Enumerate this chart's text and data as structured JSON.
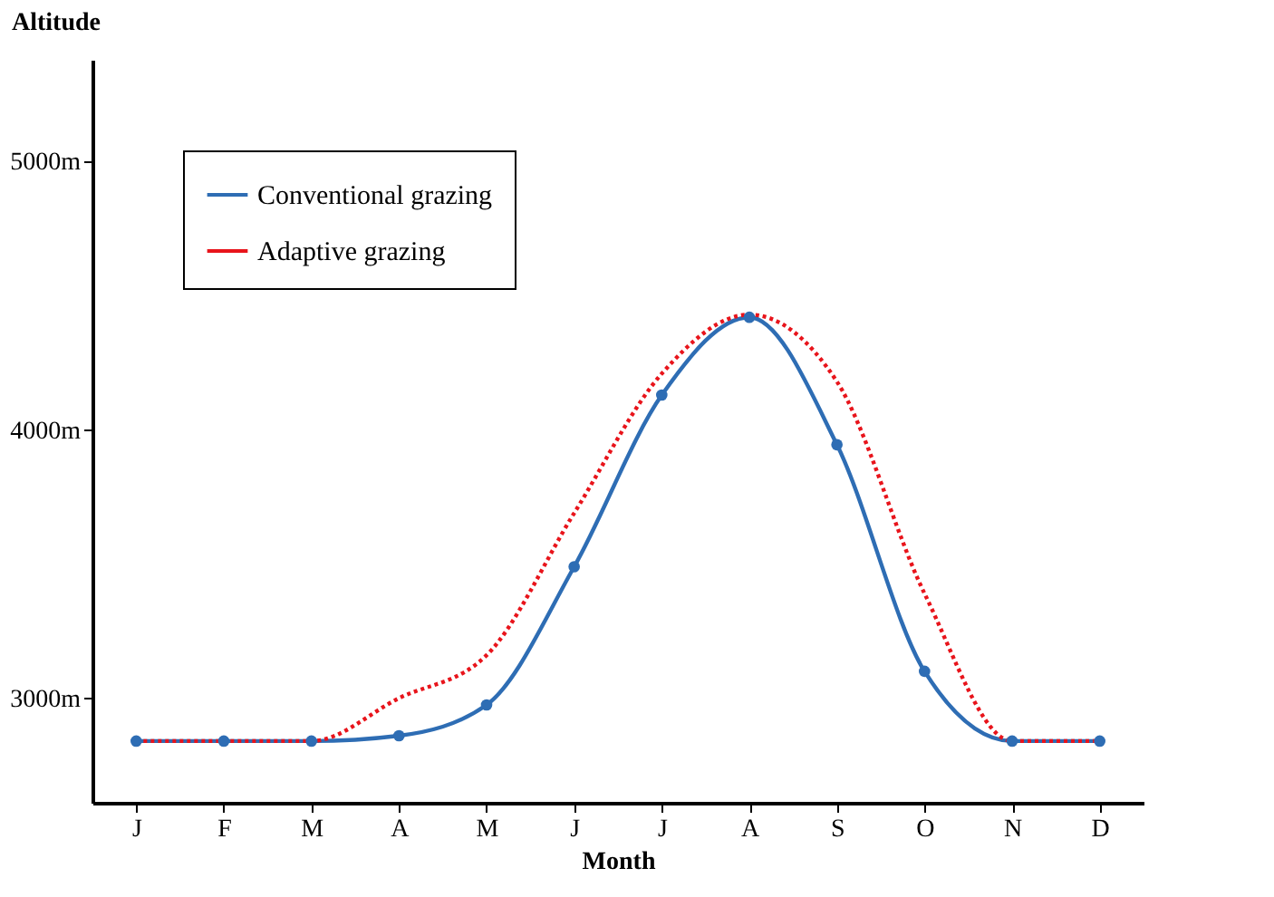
{
  "chart_data": {
    "type": "line",
    "xlabel": "Month",
    "ylabel": "Altitude",
    "categories": [
      "J",
      "F",
      "M",
      "A",
      "M",
      "J",
      "J",
      "A",
      "S",
      "O",
      "N",
      "D"
    ],
    "series": [
      {
        "name": "Conventional grazing",
        "color": "#2e6db4",
        "marker": "circle",
        "line_style": "solid",
        "values": [
          2840,
          2840,
          2840,
          2860,
          2975,
          3490,
          4130,
          4420,
          3945,
          3100,
          2840,
          2840
        ]
      },
      {
        "name": "Adaptive grazing",
        "color": "#e8141b",
        "marker": "none",
        "line_style": "dotted",
        "values": [
          2840,
          2840,
          2840,
          3000,
          3160,
          3690,
          4210,
          4430,
          4180,
          3390,
          2840,
          2840
        ]
      }
    ],
    "ylim": [
      2610,
      5380
    ],
    "yticks": [
      {
        "value": 3000,
        "label": "3000m"
      },
      {
        "value": 4000,
        "label": "4000m"
      },
      {
        "value": 5000,
        "label": "5000m"
      }
    ],
    "grid": false,
    "legend": "top left"
  }
}
